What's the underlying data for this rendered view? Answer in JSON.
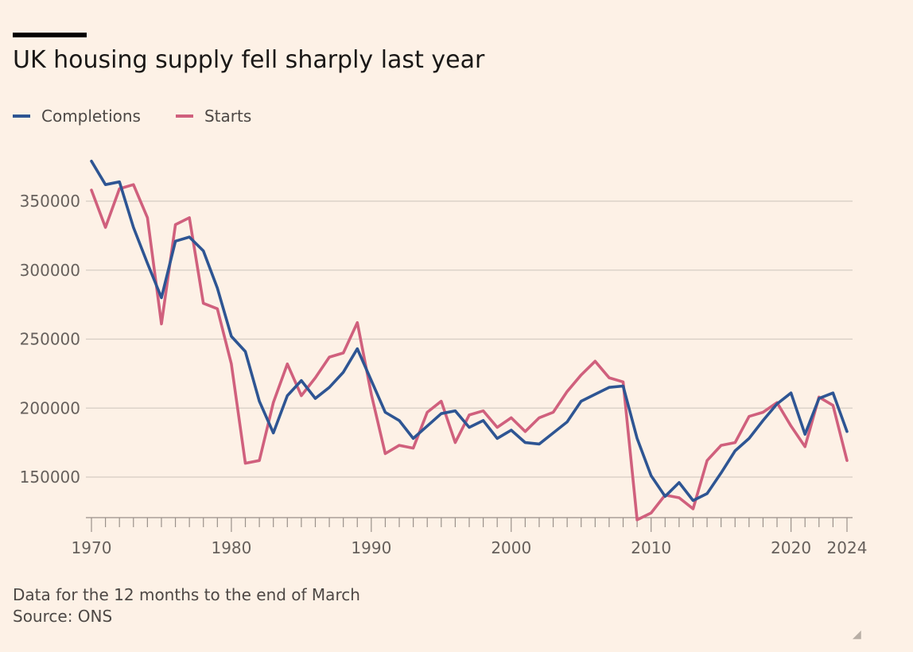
{
  "title": "UK housing supply fell sharply last year",
  "footnote": "Data for the 12 months to the end of March",
  "source": "Source: ONS",
  "colors": {
    "completions": "#2e5593",
    "starts": "#d0607d",
    "background": "#fdf1e6",
    "grid": "#d6cdc4"
  },
  "icon": "resize-grip-icon",
  "chart_data": {
    "type": "line",
    "title": "UK housing supply fell sharply last year",
    "xlabel": "",
    "ylabel": "",
    "x_tick_labels": [
      "1970",
      "1980",
      "1990",
      "2000",
      "2010",
      "2020",
      "2024"
    ],
    "y_tick_labels": [
      "150000",
      "200000",
      "250000",
      "300000",
      "350000"
    ],
    "xlim": [
      1970,
      2024
    ],
    "ylim": [
      115000,
      380000
    ],
    "legend_position": "top-left",
    "grid": "horizontal",
    "x": [
      1970,
      1971,
      1972,
      1973,
      1974,
      1975,
      1976,
      1977,
      1978,
      1979,
      1980,
      1981,
      1982,
      1983,
      1984,
      1985,
      1986,
      1987,
      1988,
      1989,
      1990,
      1991,
      1992,
      1993,
      1994,
      1995,
      1996,
      1997,
      1998,
      1999,
      2000,
      2001,
      2002,
      2003,
      2004,
      2005,
      2006,
      2007,
      2008,
      2009,
      2010,
      2011,
      2012,
      2013,
      2014,
      2015,
      2016,
      2017,
      2018,
      2019,
      2020,
      2021,
      2022,
      2023,
      2024
    ],
    "series": [
      {
        "name": "Completions",
        "values": [
          379000,
          362000,
          364000,
          331000,
          305000,
          280000,
          321000,
          324000,
          314000,
          287000,
          252000,
          241000,
          205000,
          182000,
          209000,
          220000,
          207000,
          215000,
          226000,
          243000,
          220000,
          197000,
          191000,
          178000,
          187000,
          196000,
          198000,
          186000,
          191000,
          178000,
          184000,
          175000,
          174000,
          182000,
          190000,
          205000,
          210000,
          215000,
          216000,
          178000,
          151000,
          136000,
          146000,
          133000,
          138000,
          153000,
          169000,
          178000,
          191000,
          203000,
          211000,
          181000,
          207000,
          211000,
          183000
        ]
      },
      {
        "name": "Starts",
        "values": [
          358000,
          331000,
          359000,
          362000,
          338000,
          261000,
          333000,
          338000,
          276000,
          272000,
          232000,
          160000,
          162000,
          204000,
          232000,
          209000,
          222000,
          237000,
          240000,
          262000,
          210000,
          167000,
          173000,
          171000,
          197000,
          205000,
          175000,
          195000,
          198000,
          186000,
          193000,
          183000,
          193000,
          197000,
          212000,
          224000,
          234000,
          222000,
          219000,
          119000,
          124000,
          137000,
          135000,
          127000,
          162000,
          173000,
          175000,
          194000,
          197000,
          204000,
          187000,
          172000,
          208000,
          202000,
          162000
        ]
      }
    ]
  }
}
